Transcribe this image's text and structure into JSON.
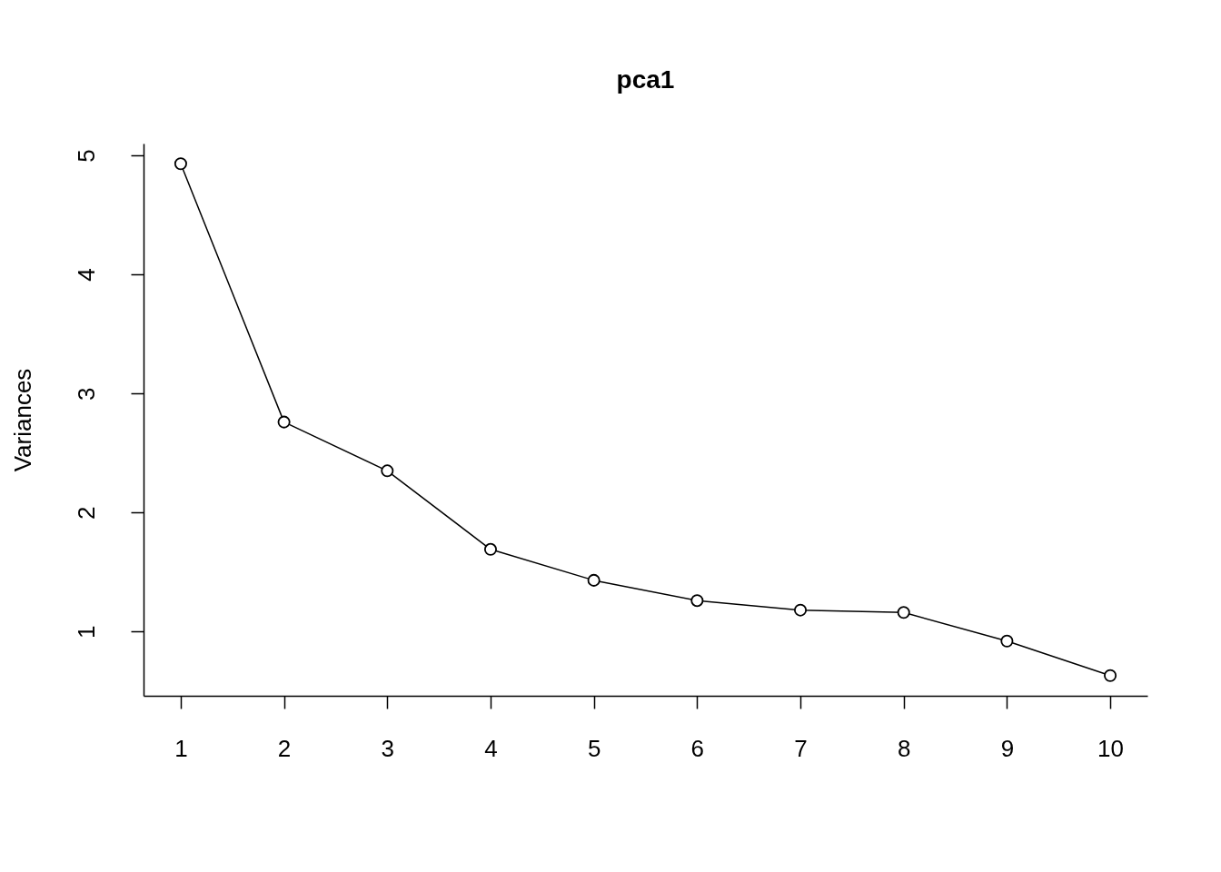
{
  "chart_data": {
    "type": "line",
    "title": "pca1",
    "ylabel": "Variances",
    "x": [
      1,
      2,
      3,
      4,
      5,
      6,
      7,
      8,
      9,
      10
    ],
    "values": [
      4.93,
      2.76,
      2.35,
      1.69,
      1.43,
      1.26,
      1.18,
      1.16,
      0.92,
      0.63
    ],
    "color": "#000000",
    "marker": "circle",
    "line_style": "solid",
    "xlim": [
      0.64,
      10.36
    ],
    "ylim": [
      0.46,
      5.1
    ],
    "xticks": [
      1,
      2,
      3,
      4,
      5,
      6,
      7,
      8,
      9,
      10
    ],
    "yticks": [
      1,
      2,
      3,
      4,
      5
    ],
    "grid": false
  }
}
